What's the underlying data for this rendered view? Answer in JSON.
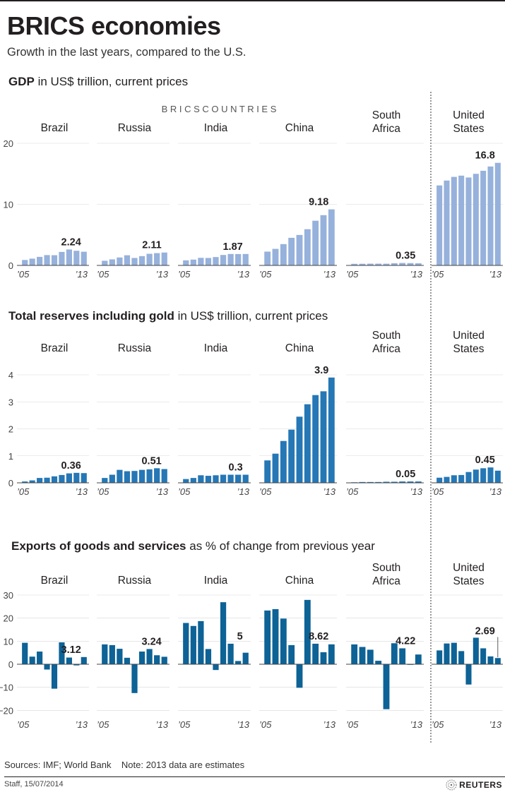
{
  "header": {
    "title": "BRICS economies",
    "subtitle": "Growth in the last years, compared to the U.S."
  },
  "brics_label": "B R I C S    C O U N T R I E S",
  "start_year_label": "’05",
  "end_year_label": "’13",
  "colors": {
    "gdp": "#96b1db",
    "reserves": "#2577b5",
    "exports": "#0d6296",
    "text": "#231f20"
  },
  "chart_data": [
    {
      "id": "gdp",
      "type": "bar",
      "title_bold": "GDP",
      "title_rest": " in US$ trillion, current prices",
      "years": [
        2005,
        2006,
        2007,
        2008,
        2009,
        2010,
        2011,
        2012,
        2013
      ],
      "ylim": [
        0,
        20
      ],
      "yticks": [
        0,
        10,
        20
      ],
      "series": [
        {
          "name": "Brazil",
          "values": [
            0.89,
            1.11,
            1.4,
            1.69,
            1.67,
            2.21,
            2.61,
            2.4,
            2.24
          ],
          "label": "2.24"
        },
        {
          "name": "Russia",
          "values": [
            0.76,
            0.99,
            1.3,
            1.66,
            1.22,
            1.52,
            1.9,
            2.01,
            2.11
          ],
          "label": "2.11"
        },
        {
          "name": "India",
          "values": [
            0.83,
            0.95,
            1.24,
            1.22,
            1.37,
            1.71,
            1.87,
            1.86,
            1.87
          ],
          "label": "1.87"
        },
        {
          "name": "China",
          "values": [
            2.26,
            2.71,
            3.49,
            4.52,
            4.99,
            5.93,
            7.32,
            8.23,
            9.18
          ],
          "label": "9.18"
        },
        {
          "name": "South Africa",
          "values": [
            0.26,
            0.27,
            0.29,
            0.29,
            0.28,
            0.36,
            0.4,
            0.38,
            0.35
          ],
          "label": "0.35"
        },
        {
          "name": "United States",
          "values": [
            13.1,
            13.9,
            14.5,
            14.7,
            14.4,
            15.0,
            15.5,
            16.2,
            16.8
          ],
          "label": "16.8"
        }
      ]
    },
    {
      "id": "reserves",
      "type": "bar",
      "title_bold": "Total reserves including gold",
      "title_rest": " in US$ trillion, current prices",
      "years": [
        2005,
        2006,
        2007,
        2008,
        2009,
        2010,
        2011,
        2012,
        2013
      ],
      "ylim": [
        0,
        4
      ],
      "yticks": [
        0,
        1,
        2,
        3,
        4
      ],
      "series": [
        {
          "name": "Brazil",
          "values": [
            0.05,
            0.09,
            0.18,
            0.19,
            0.24,
            0.29,
            0.35,
            0.37,
            0.36
          ],
          "label": "0.36"
        },
        {
          "name": "Russia",
          "values": [
            0.18,
            0.3,
            0.48,
            0.43,
            0.44,
            0.48,
            0.5,
            0.54,
            0.51
          ],
          "label": "0.51"
        },
        {
          "name": "India",
          "values": [
            0.14,
            0.18,
            0.28,
            0.26,
            0.28,
            0.3,
            0.3,
            0.3,
            0.3
          ],
          "label": "0.3"
        },
        {
          "name": "China",
          "values": [
            0.83,
            1.08,
            1.55,
            1.97,
            2.45,
            2.91,
            3.25,
            3.39,
            3.9
          ],
          "label": "3.9"
        },
        {
          "name": "South Africa",
          "values": [
            0.02,
            0.03,
            0.03,
            0.03,
            0.04,
            0.04,
            0.05,
            0.05,
            0.05
          ],
          "label": "0.05"
        },
        {
          "name": "United States",
          "values": [
            0.19,
            0.22,
            0.28,
            0.29,
            0.4,
            0.49,
            0.54,
            0.57,
            0.45
          ],
          "label": "0.45"
        }
      ]
    },
    {
      "id": "exports",
      "type": "bar",
      "title_bold": "Exports of goods and services",
      "title_rest": " as % of change from previous year",
      "years": [
        2005,
        2006,
        2007,
        2008,
        2009,
        2010,
        2011,
        2012,
        2013
      ],
      "ylim": [
        -20,
        30
      ],
      "yticks": [
        -20,
        -10,
        0,
        10,
        20,
        30
      ],
      "series": [
        {
          "name": "Brazil",
          "values": [
            9.3,
            3.3,
            5.5,
            -2.3,
            -10.6,
            9.5,
            2.9,
            -0.5,
            3.12
          ],
          "label": "3.12"
        },
        {
          "name": "Russia",
          "values": [
            8.6,
            8.3,
            6.7,
            2.8,
            -12.5,
            5.5,
            6.6,
            3.9,
            3.24
          ],
          "label": "3.24"
        },
        {
          "name": "India",
          "values": [
            17.9,
            16.6,
            18.7,
            6.6,
            -2.5,
            26.9,
            8.9,
            1.4,
            5.0
          ],
          "label": "5"
        },
        {
          "name": "China",
          "values": [
            23.3,
            23.9,
            19.8,
            8.3,
            -10.2,
            27.9,
            8.9,
            5.2,
            8.62
          ],
          "label": "8.62"
        },
        {
          "name": "South Africa",
          "values": [
            8.6,
            7.5,
            6.3,
            1.5,
            -19.5,
            9.1,
            6.9,
            0.1,
            4.22
          ],
          "label": "4.22"
        },
        {
          "name": "United States",
          "values": [
            6.0,
            9.0,
            9.3,
            5.7,
            -8.8,
            11.5,
            6.9,
            3.4,
            2.69
          ],
          "label": "2.69"
        }
      ]
    }
  ],
  "footer": {
    "sources": "Sources: IMF; World Bank    Note: 2013 data are estimates",
    "staff": "Staff, 15/07/2014",
    "logo": "REUTERS"
  }
}
